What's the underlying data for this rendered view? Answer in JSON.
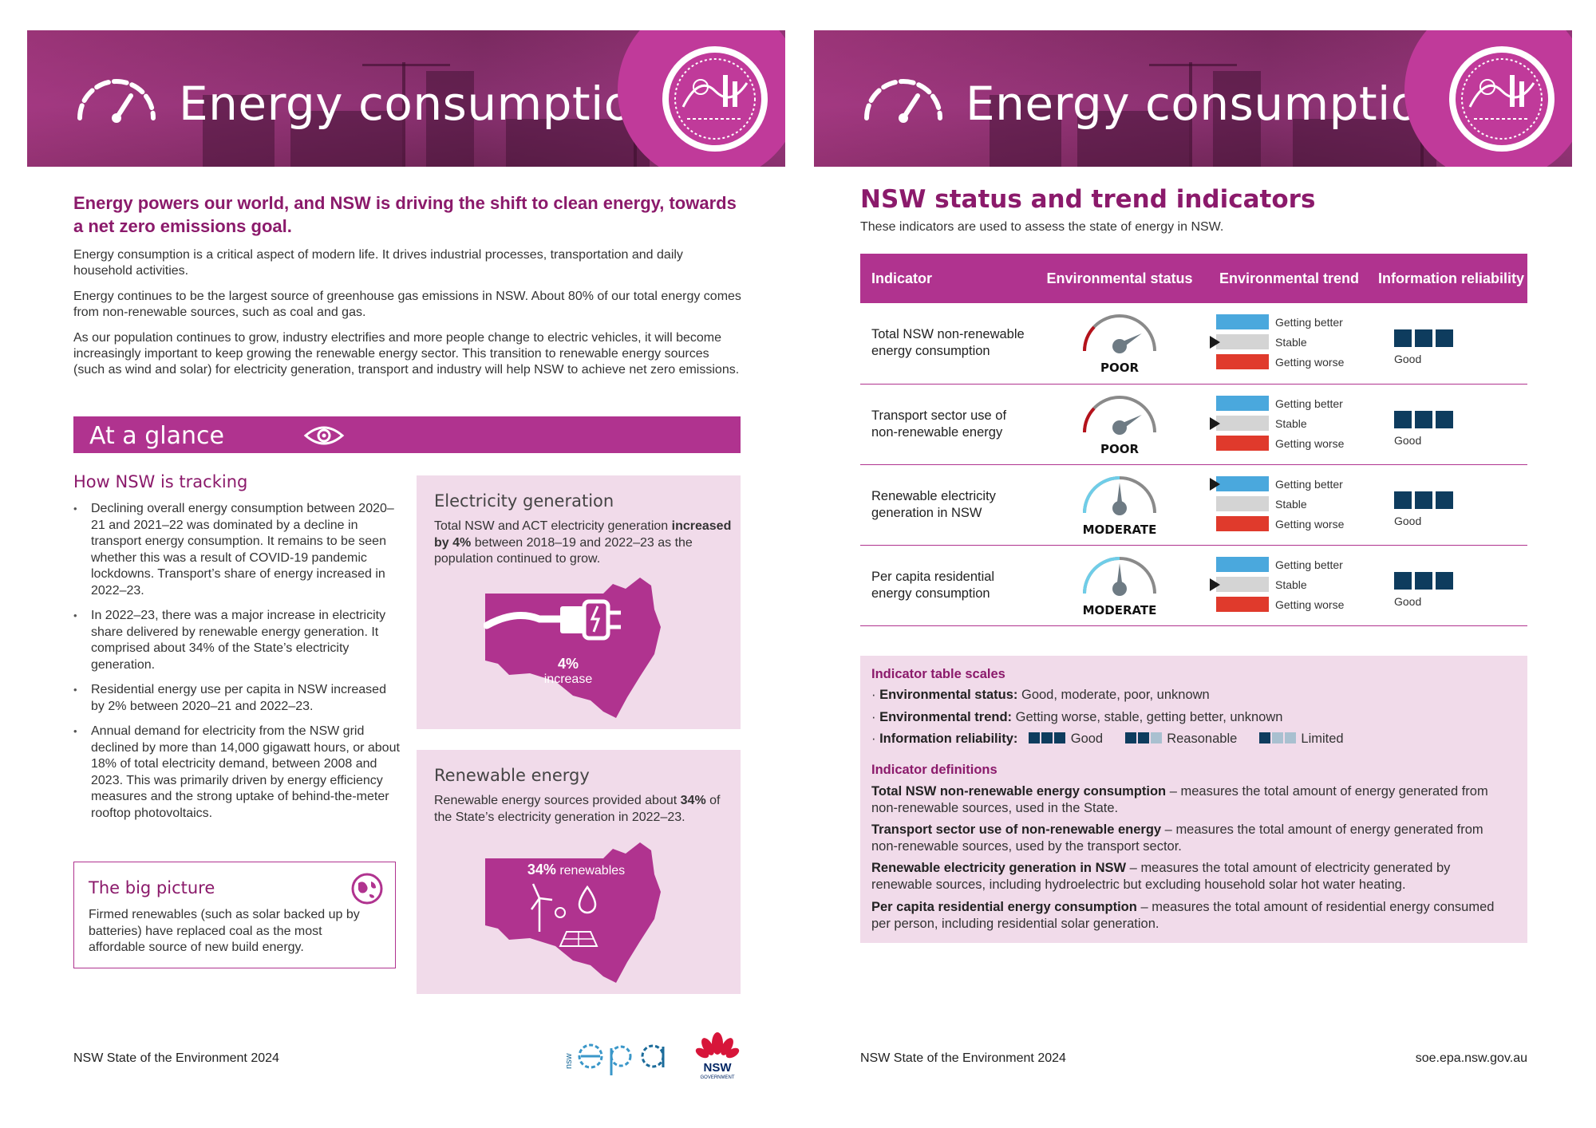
{
  "left_page": {
    "banner_title": "Energy consumption",
    "lead": "Energy powers our world, and NSW is driving the shift to clean energy, towards a net zero emissions goal.",
    "paragraphs": [
      "Energy consumption is a critical aspect of modern life. It drives industrial processes, transportation and daily household activities.",
      "Energy continues to be the largest source of greenhouse gas emissions in NSW. About 80% of our total energy comes from non-renewable sources, such as coal and gas.",
      "As our population continues to grow, industry electrifies and more people change to electric vehicles, it will become increasingly important to keep growing the renewable energy sector. This transition to renewable energy sources (such as wind and solar) for electricity generation, transport and industry will help NSW to achieve net zero emissions."
    ],
    "glance_title": "At a glance",
    "tracking_heading": "How NSW is tracking",
    "bullets": [
      "Declining overall energy consumption between 2020–21 and 2021–22 was dominated by a decline in transport energy consumption. It remains to be seen whether this was a result of COVID-19 pandemic lockdowns. Transport’s share of energy increased in 2022–23.",
      "In 2022–23, there was a major increase in electricity share delivered by renewable energy generation. It comprised about 34% of the State’s electricity generation.",
      "Residential energy use per capita in NSW increased by 2% between 2020–21 and 2022–23.",
      "Annual demand for electricity from the NSW grid declined by more than 14,000 gigawatt hours, or about 18% of total electricity demand, between 2008 and 2023. This was primarily driven by energy efficiency measures and the strong uptake of behind-the-meter rooftop photovoltaics."
    ],
    "electricity_card": {
      "title": "Electricity generation",
      "text_a": "Total NSW and ACT electricity generation ",
      "text_bold": "increased by 4%",
      "text_b": " between 2018–19 and 2022–23 as the population continued to grow.",
      "map_value": "4%",
      "map_caption": "increase"
    },
    "renewable_card": {
      "title": "Renewable energy",
      "text_a": "Renewable energy sources provided about ",
      "text_bold": "34%",
      "text_b": " of the State’s electricity generation in 2022–23.",
      "map_value": "34%",
      "map_caption": "renewables"
    },
    "big_picture": {
      "title": "The big picture",
      "text": "Firmed renewables (such as solar backed up by batteries) have replaced coal as the most affordable source of new build energy."
    },
    "footer": "NSW State of the Environment 2024",
    "epa_logo_side": "nsw",
    "nsw_logo_text": "NSW",
    "nsw_logo_sub": "GOVERNMENT"
  },
  "right_page": {
    "banner_title": "Energy consumption",
    "heading": "NSW status and trend indicators",
    "subheading": "These indicators are used to assess the state of energy in NSW.",
    "table_headers": [
      "Indicator",
      "Environmental status",
      "Environmental trend",
      "Information reliability"
    ],
    "trend_labels": [
      "Getting better",
      "Stable",
      "Getting worse"
    ],
    "rows": [
      {
        "indicator": "Total NSW non-renewable energy consumption",
        "status": "POOR",
        "trend_index": 1,
        "reliability": "Good"
      },
      {
        "indicator": "Transport sector use of non-renewable energy",
        "status": "POOR",
        "trend_index": 1,
        "reliability": "Good"
      },
      {
        "indicator": "Renewable electricity generation in NSW",
        "status": "MODERATE",
        "trend_index": 0,
        "reliability": "Good"
      },
      {
        "indicator": "Per capita residential energy consumption",
        "status": "MODERATE",
        "trend_index": 1,
        "reliability": "Good"
      }
    ],
    "scales": {
      "heading": "Indicator table scales",
      "status_label": "Environmental status:",
      "status_values": "Good, moderate, poor, unknown",
      "trend_label": "Environmental trend:",
      "trend_values": "Getting worse, stable, getting better, unknown",
      "reliability_label": "Information reliability:",
      "reliability_values": [
        "Good",
        "Reasonable",
        "Limited"
      ]
    },
    "definitions_heading": "Indicator definitions",
    "definitions": [
      {
        "term": "Total NSW non-renewable energy consumption",
        "text": " – measures the total amount of energy generated from non-renewable sources, used in the State."
      },
      {
        "term": "Transport sector use of non-renewable energy",
        "text": " – measures the total amount of energy generated from non-renewable sources, used by the transport sector."
      },
      {
        "term": "Renewable electricity generation in NSW",
        "text": " – measures the total amount of electricity generated by renewable sources, including hydroelectric but excluding household solar hot water heating."
      },
      {
        "term": "Per capita residential energy consumption",
        "text": " – measures the total amount of residential energy consumed per person, including residential solar generation."
      }
    ],
    "footer_left": "NSW State of the Environment 2024",
    "footer_right": "soe.epa.nsw.gov.au"
  },
  "colors": {
    "brand_magenta": "#b0338f",
    "heading_plum": "#8b1a6b",
    "card_pink": "#f1dbea",
    "trend_better": "#4aa8dd",
    "trend_stable": "#d4d4d4",
    "trend_worse": "#e03a2c",
    "reliability_navy": "#0e3c5e",
    "reliability_light": "#a9c0d0"
  },
  "icons": [
    "gauge-icon",
    "seal-logo",
    "eye-icon",
    "plug-icon",
    "wind-turbine-icon",
    "solar-panel-icon",
    "globe-icon",
    "waratah-icon"
  ]
}
